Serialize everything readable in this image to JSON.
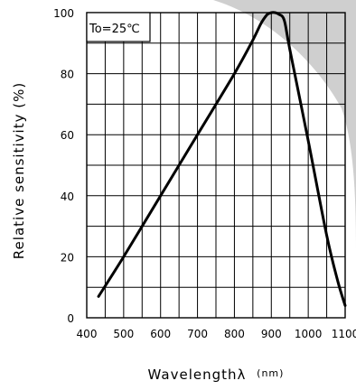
{
  "chart_data": {
    "type": "line",
    "xlabel": "Wavelengthλ",
    "xunit": "(nm)",
    "ylabel": "Relative sensitivity (%)",
    "annotation": "To=25℃",
    "xlim": [
      400,
      1100
    ],
    "ylim": [
      0,
      100
    ],
    "x_ticks": [
      400,
      500,
      600,
      700,
      800,
      900,
      1000,
      1100
    ],
    "y_ticks": [
      0,
      20,
      40,
      60,
      80,
      100
    ],
    "x_grid_step": 50,
    "y_grid_step": 10,
    "grid": true,
    "series": [
      {
        "x": [
          432,
          500,
          600,
          700,
          800,
          850,
          870,
          880,
          890,
          900,
          910,
          920,
          935,
          950,
          1000,
          1050,
          1080,
          1100
        ],
        "y": [
          7,
          20,
          40,
          60,
          80,
          91,
          96,
          98,
          99.5,
          100,
          100,
          99.5,
          97.5,
          88,
          58,
          27,
          12,
          4
        ]
      }
    ],
    "colors": {
      "background": "#ffffff",
      "shadow": "#cfcfcf",
      "line": "#000000"
    }
  }
}
